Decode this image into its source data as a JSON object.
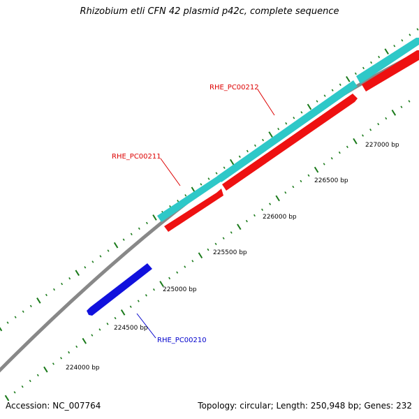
{
  "title": "Rhizobium etli CFN 42 plasmid p42c, complete sequence",
  "footer": {
    "accession": "Accession: NC_007764",
    "stats": "Topology: circular; Length: 250,948 bp; Genes: 232"
  },
  "colors": {
    "backbone": "#888888",
    "tick": "#1a7a1a",
    "cds_top": "#2ec8c8",
    "cds_red": "#ee1111",
    "cds_blue": "#1111dd",
    "label_red": "#dd0000",
    "label_blue": "#0000cc"
  },
  "scale_labels": [
    "224000 bp",
    "224500 bp",
    "225000 bp",
    "225500 bp",
    "226000 bp",
    "226500 bp",
    "227000 bp"
  ],
  "genes": [
    {
      "id": "RHE_PC00210",
      "strand": "reverse",
      "color_key": "cds_blue",
      "label_color_key": "label_blue"
    },
    {
      "id": "RHE_PC00211",
      "strand": "forward",
      "color_key": "cds_red",
      "label_color_key": "label_red"
    },
    {
      "id": "RHE_PC00212",
      "strand": "forward",
      "color_key": "cds_red",
      "label_color_key": "label_red"
    }
  ]
}
